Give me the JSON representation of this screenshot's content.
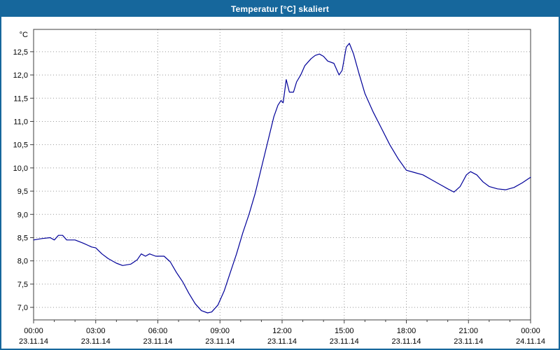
{
  "window": {
    "title": "Temperatur [°C] skaliert"
  },
  "colors": {
    "frame": "#16679c",
    "titlebar_bg": "#16679c",
    "titlebar_text": "#ffffff",
    "chart_bg": "#ffffff",
    "plot_border": "#3f3f3f",
    "grid": "#999999",
    "line": "#000099",
    "text": "#000000"
  },
  "chart_data": {
    "type": "line",
    "title": "Temperatur [°C] skaliert",
    "xlabel": "",
    "ylabel": "°C",
    "ylim": [
      6.73,
      12.98
    ],
    "xlim_hours": [
      0,
      24
    ],
    "grid": true,
    "legend": false,
    "yticks": [
      7.0,
      7.5,
      8.0,
      8.5,
      9.0,
      9.5,
      10.0,
      10.5,
      11.0,
      11.5,
      12.0,
      12.5
    ],
    "ytick_labels": [
      "7,0",
      "7,5",
      "8,0",
      "8,5",
      "9,0",
      "9,5",
      "10,0",
      "10,5",
      "11,0",
      "11,5",
      "12,0",
      "12,5"
    ],
    "xticks": [
      {
        "hour": 0,
        "time": "00:00",
        "date": "23.11.14"
      },
      {
        "hour": 3,
        "time": "03:00",
        "date": "23.11.14"
      },
      {
        "hour": 6,
        "time": "06:00",
        "date": "23.11.14"
      },
      {
        "hour": 9,
        "time": "09:00",
        "date": "23.11.14"
      },
      {
        "hour": 12,
        "time": "12:00",
        "date": "23.11.14"
      },
      {
        "hour": 15,
        "time": "15:00",
        "date": "23.11.14"
      },
      {
        "hour": 18,
        "time": "18:00",
        "date": "23.11.14"
      },
      {
        "hour": 21,
        "time": "21:00",
        "date": "23.11.14"
      },
      {
        "hour": 24,
        "time": "00:00",
        "date": "24.11.14"
      }
    ],
    "series": [
      {
        "name": "Temperatur [°C]",
        "points": [
          [
            0.0,
            8.45
          ],
          [
            0.4,
            8.48
          ],
          [
            0.8,
            8.5
          ],
          [
            1.0,
            8.45
          ],
          [
            1.2,
            8.55
          ],
          [
            1.4,
            8.55
          ],
          [
            1.6,
            8.45
          ],
          [
            2.0,
            8.45
          ],
          [
            2.4,
            8.38
          ],
          [
            2.8,
            8.3
          ],
          [
            3.0,
            8.28
          ],
          [
            3.3,
            8.15
          ],
          [
            3.6,
            8.05
          ],
          [
            4.0,
            7.95
          ],
          [
            4.3,
            7.9
          ],
          [
            4.7,
            7.93
          ],
          [
            5.0,
            8.02
          ],
          [
            5.2,
            8.15
          ],
          [
            5.4,
            8.1
          ],
          [
            5.6,
            8.15
          ],
          [
            5.9,
            8.1
          ],
          [
            6.3,
            8.1
          ],
          [
            6.6,
            7.98
          ],
          [
            6.9,
            7.75
          ],
          [
            7.2,
            7.55
          ],
          [
            7.5,
            7.3
          ],
          [
            7.8,
            7.08
          ],
          [
            8.1,
            6.93
          ],
          [
            8.4,
            6.88
          ],
          [
            8.6,
            6.9
          ],
          [
            8.9,
            7.05
          ],
          [
            9.2,
            7.35
          ],
          [
            9.5,
            7.75
          ],
          [
            9.8,
            8.15
          ],
          [
            10.1,
            8.6
          ],
          [
            10.4,
            9.0
          ],
          [
            10.7,
            9.45
          ],
          [
            11.0,
            10.0
          ],
          [
            11.3,
            10.55
          ],
          [
            11.6,
            11.1
          ],
          [
            11.8,
            11.35
          ],
          [
            11.95,
            11.45
          ],
          [
            12.05,
            11.4
          ],
          [
            12.2,
            11.9
          ],
          [
            12.35,
            11.63
          ],
          [
            12.55,
            11.63
          ],
          [
            12.7,
            11.85
          ],
          [
            12.9,
            12.0
          ],
          [
            13.1,
            12.2
          ],
          [
            13.4,
            12.35
          ],
          [
            13.6,
            12.42
          ],
          [
            13.8,
            12.45
          ],
          [
            14.0,
            12.4
          ],
          [
            14.2,
            12.3
          ],
          [
            14.5,
            12.25
          ],
          [
            14.75,
            12.0
          ],
          [
            14.9,
            12.1
          ],
          [
            15.1,
            12.6
          ],
          [
            15.25,
            12.68
          ],
          [
            15.45,
            12.45
          ],
          [
            15.7,
            12.05
          ],
          [
            16.0,
            11.6
          ],
          [
            16.4,
            11.2
          ],
          [
            16.8,
            10.85
          ],
          [
            17.2,
            10.5
          ],
          [
            17.6,
            10.2
          ],
          [
            18.0,
            9.95
          ],
          [
            18.4,
            9.9
          ],
          [
            18.8,
            9.85
          ],
          [
            19.2,
            9.75
          ],
          [
            19.6,
            9.65
          ],
          [
            20.0,
            9.55
          ],
          [
            20.3,
            9.48
          ],
          [
            20.6,
            9.6
          ],
          [
            20.9,
            9.85
          ],
          [
            21.1,
            9.92
          ],
          [
            21.4,
            9.85
          ],
          [
            21.7,
            9.7
          ],
          [
            22.0,
            9.6
          ],
          [
            22.4,
            9.55
          ],
          [
            22.8,
            9.53
          ],
          [
            23.2,
            9.58
          ],
          [
            23.6,
            9.68
          ],
          [
            24.0,
            9.8
          ]
        ]
      }
    ]
  }
}
